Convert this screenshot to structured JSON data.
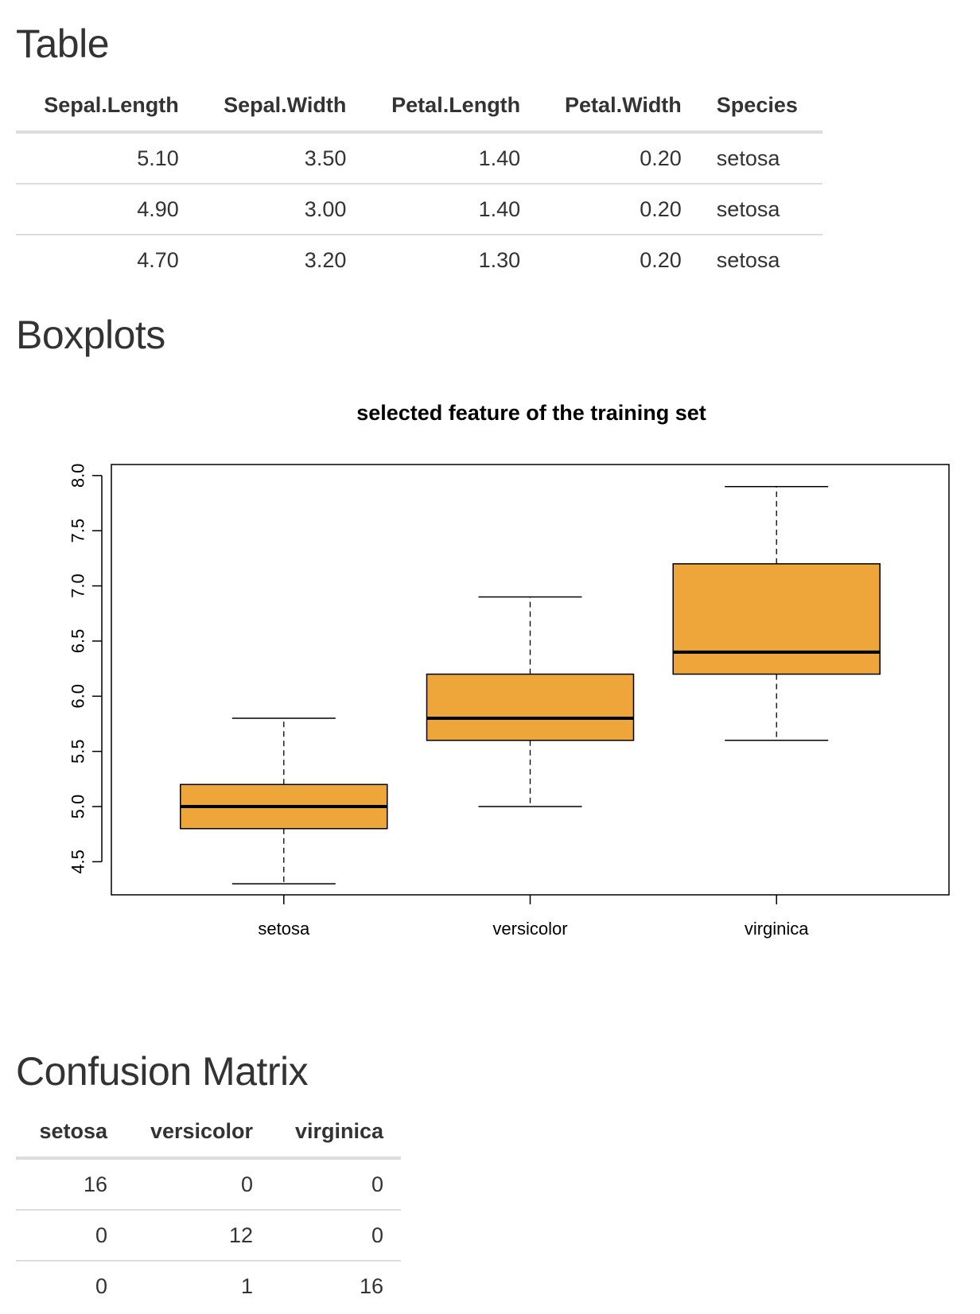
{
  "sections": {
    "table_title": "Table",
    "boxplots_title": "Boxplots",
    "confusion_title": "Confusion Matrix"
  },
  "data_table": {
    "headers": [
      "Sepal.Length",
      "Sepal.Width",
      "Petal.Length",
      "Petal.Width",
      "Species"
    ],
    "rows": [
      [
        "5.10",
        "3.50",
        "1.40",
        "0.20",
        "setosa"
      ],
      [
        "4.90",
        "3.00",
        "1.40",
        "0.20",
        "setosa"
      ],
      [
        "4.70",
        "3.20",
        "1.30",
        "0.20",
        "setosa"
      ]
    ]
  },
  "confusion_matrix": {
    "headers": [
      "setosa",
      "versicolor",
      "virginica"
    ],
    "rows": [
      [
        "16",
        "0",
        "0"
      ],
      [
        "0",
        "12",
        "0"
      ],
      [
        "0",
        "1",
        "16"
      ]
    ]
  },
  "chart_data": {
    "type": "boxplot",
    "title": "selected feature of the training set",
    "xlabel": "",
    "ylabel": "",
    "categories": [
      "setosa",
      "versicolor",
      "virginica"
    ],
    "boxes": [
      {
        "category": "setosa",
        "min": 4.3,
        "q1": 4.8,
        "median": 5.0,
        "q3": 5.2,
        "max": 5.8
      },
      {
        "category": "versicolor",
        "min": 5.0,
        "q1": 5.6,
        "median": 5.8,
        "q3": 6.2,
        "max": 6.9
      },
      {
        "category": "virginica",
        "min": 5.6,
        "q1": 6.2,
        "median": 6.4,
        "q3": 7.2,
        "max": 7.9
      }
    ],
    "ylim": [
      4.2,
      8.1
    ],
    "yticks": [
      "4.5",
      "5.0",
      "5.5",
      "6.0",
      "6.5",
      "7.0",
      "7.5",
      "8.0"
    ],
    "box_color": "#eea63b",
    "grid": false,
    "legend": "none"
  }
}
